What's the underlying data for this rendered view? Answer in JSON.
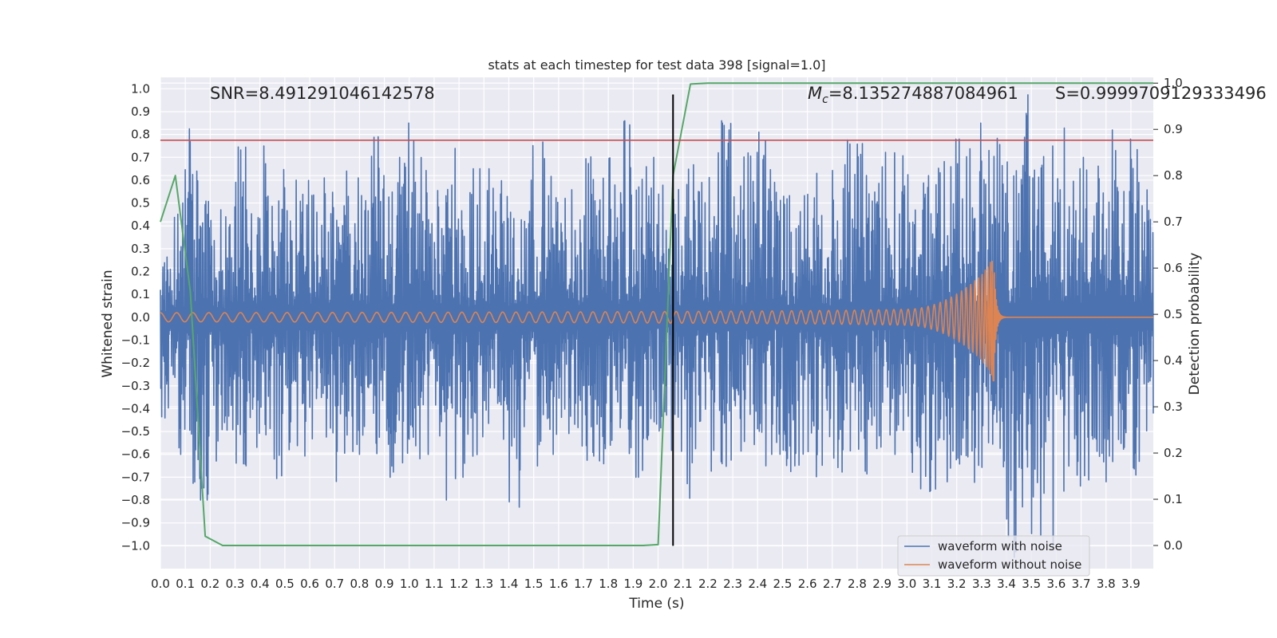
{
  "chart_data": {
    "type": "line",
    "title": "stats at each timestep for test data 398 [signal=1.0]",
    "xlabel": "Time (s)",
    "ylabel": "Whitened strain",
    "y2label": "Detection probability",
    "xlim": [
      0.0,
      3.99
    ],
    "ylim": [
      -1.1,
      1.05
    ],
    "y2lim": [
      -0.05,
      1.0125
    ],
    "xticks": [
      "0.0",
      "0.1",
      "0.2",
      "0.3",
      "0.4",
      "0.5",
      "0.6",
      "0.7",
      "0.8",
      "0.9",
      "1.0",
      "1.1",
      "1.2",
      "1.3",
      "1.4",
      "1.5",
      "1.6",
      "1.7",
      "1.8",
      "1.9",
      "2.0",
      "2.1",
      "2.2",
      "2.3",
      "2.4",
      "2.5",
      "2.6",
      "2.7",
      "2.8",
      "2.9",
      "3.0",
      "3.1",
      "3.2",
      "3.3",
      "3.4",
      "3.5",
      "3.6",
      "3.7",
      "3.8",
      "3.9"
    ],
    "yticks": [
      "1.0",
      "0.9",
      "0.8",
      "0.7",
      "0.6",
      "0.5",
      "0.4",
      "0.3",
      "0.2",
      "0.1",
      "0.0",
      "−0.1",
      "−0.2",
      "−0.3",
      "−0.4",
      "−0.5",
      "−0.6",
      "−0.7",
      "−0.8",
      "−0.9",
      "−1.0"
    ],
    "y2ticks": [
      "1.0",
      "0.9",
      "0.8",
      "0.7",
      "0.6",
      "0.5",
      "0.4",
      "0.3",
      "0.2",
      "0.1",
      "0.0"
    ],
    "grid": true,
    "legend_position": "lower-right",
    "annotations": {
      "snr": "SNR=8.491291046142578",
      "mc_sym": "M",
      "mc_sub": "c",
      "mc_val": "=8.135274887084961",
      "s": "S=0.9999709129333496"
    },
    "series": [
      {
        "name": "waveform with noise",
        "color": "#4c72b0",
        "axis": "left",
        "envelope_max": [
          0.3,
          0.5,
          0.85,
          0.6,
          0.5,
          0.45,
          0.83,
          0.5,
          0.75,
          0.65,
          0.6,
          0.86,
          0.7,
          0.65,
          0.6,
          0.65,
          0.58,
          0.8,
          0.62,
          0.7,
          0.85,
          0.7,
          0.65,
          0.75,
          0.55,
          0.65,
          0.65,
          0.6,
          0.58,
          0.6,
          0.85,
          0.65,
          0.58,
          0.57,
          0.75,
          0.65,
          0.7,
          0.86,
          0.68,
          0.7,
          0.6,
          0.6,
          0.75,
          0.85,
          0.72,
          0.86,
          0.65,
          0.75,
          0.82,
          0.7,
          0.65,
          0.65,
          0.7,
          0.6,
          0.78,
          0.8,
          0.76,
          0.63,
          0.8,
          0.72,
          0.65,
          0.62,
          0.82,
          0.7,
          0.78,
          0.75,
          0.85,
          0.83,
          0.7,
          0.98,
          0.68,
          0.75,
          0.85,
          0.7,
          0.7,
          0.75,
          0.85,
          0.62,
          0.78,
          0.62
        ],
        "envelope_min": [
          -0.45,
          -0.6,
          -0.85,
          -0.8,
          -0.72,
          -0.6,
          -0.65,
          -0.6,
          -0.65,
          -0.85,
          -0.62,
          -0.65,
          -0.6,
          -0.6,
          -0.72,
          -0.7,
          -0.6,
          -0.7,
          -0.7,
          -0.65,
          -0.62,
          -0.6,
          -0.6,
          -0.8,
          -0.7,
          -0.62,
          -0.68,
          -0.65,
          -0.85,
          -0.6,
          -0.7,
          -0.6,
          -0.6,
          -0.6,
          -0.75,
          -0.65,
          -0.62,
          -0.6,
          -0.7,
          -0.62,
          -0.5,
          -0.65,
          -0.82,
          -0.62,
          -0.7,
          -0.72,
          -0.65,
          -0.7,
          -0.65,
          -0.6,
          -0.7,
          -0.65,
          -0.75,
          -0.68,
          -0.72,
          -0.7,
          -0.75,
          -0.65,
          -0.6,
          -0.6,
          -0.7,
          -0.84,
          -0.8,
          -0.72,
          -0.75,
          -0.85,
          -0.73,
          -0.85,
          -1.05,
          -0.83,
          -0.98,
          -1.05,
          -0.78,
          -0.7,
          -0.85,
          -0.7,
          -0.72,
          -0.6,
          -0.7,
          -0.55
        ]
      },
      {
        "name": "waveform without noise",
        "color": "#dd8452",
        "axis": "left",
        "chirp": {
          "t_merger": 3.35,
          "amp_start": 0.02,
          "amp_peak": 0.3,
          "cycles": 220
        }
      },
      {
        "name": "",
        "color": "#55a868",
        "axis": "right",
        "x": [
          0.0,
          0.06,
          0.12,
          0.18,
          0.25,
          0.3,
          1.0,
          1.5,
          1.94,
          2.0,
          2.06,
          2.13,
          2.2,
          3.0,
          3.99
        ],
        "y": [
          0.7,
          0.8,
          0.55,
          0.02,
          0.0,
          0.0,
          0.0,
          0.0,
          0.0,
          0.002,
          0.8,
          0.998,
          1.0,
          1.0,
          1.0
        ]
      }
    ],
    "hlines": [
      {
        "axis": "left",
        "y": 0.775,
        "color": "#c44e52"
      }
    ],
    "vlines": [
      {
        "x": 2.06,
        "y0": -1.0,
        "y1": 0.975,
        "color": "#000000"
      }
    ]
  }
}
